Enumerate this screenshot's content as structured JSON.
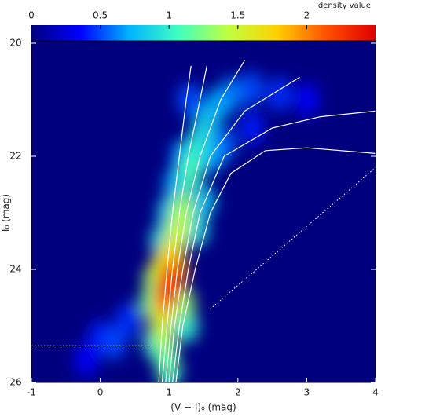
{
  "chart_data": {
    "type": "hess",
    "xlabel": "(V − I)₀ (mag)",
    "ylabel": "I₀ (mag)",
    "colorbar_label": "density value",
    "xlim": [
      -1,
      4
    ],
    "xticks": [
      -1,
      0,
      1,
      2,
      3,
      4
    ],
    "ylim": [
      20,
      26
    ],
    "yticks": [
      20,
      22,
      24,
      26
    ],
    "y_inverted": true,
    "clim": [
      0,
      2.5
    ],
    "cticks": [
      0,
      0.5,
      1,
      1.5,
      2
    ],
    "colormap": [
      "#00007f",
      "#0000ff",
      "#00b4ff",
      "#40ffc0",
      "#c0ff40",
      "#ffd000",
      "#ff5000",
      "#e00000"
    ],
    "density": {
      "x": [
        -0.2,
        0.0,
        3.0,
        2.2,
        0.4,
        2.6,
        0.2,
        2.2,
        1.3,
        1.8,
        1.9,
        1.2,
        1.7,
        1.1,
        1.6,
        1.55,
        1.0,
        1.5,
        0.8,
        1.45,
        0.9,
        1.4,
        1.35,
        1.0,
        1.25,
        1.3,
        0.95,
        1.2,
        0.75,
        0.9,
        1.2,
        1.15,
        0.8,
        1.1,
        0.9,
        0.9,
        1.0,
        1.1,
        0.95,
        1.05,
        1.0
      ],
      "y": [
        25.6,
        25.2,
        21.0,
        21.5,
        24.9,
        20.9,
        25.3,
        20.8,
        21.0,
        21.8,
        20.9,
        22.0,
        21.1,
        22.5,
        22.0,
        21.4,
        23.0,
        22.8,
        25.3,
        21.7,
        23.5,
        23.3,
        22.0,
        25.8,
        25.0,
        22.3,
        25.5,
        22.9,
        24.6,
        25.1,
        24.6,
        23.2,
        24.2,
        23.5,
        24.8,
        24.0,
        23.8,
        24.0,
        24.5,
        24.2,
        24.3
      ],
      "values": [
        0.35,
        0.4,
        0.35,
        0.4,
        0.45,
        0.45,
        0.5,
        0.5,
        0.5,
        0.55,
        0.6,
        0.6,
        0.7,
        0.7,
        0.7,
        0.8,
        0.8,
        0.8,
        0.9,
        0.9,
        0.9,
        0.9,
        1.0,
        1.1,
        1.0,
        1.1,
        1.2,
        1.3,
        1.2,
        1.4,
        1.3,
        1.4,
        1.3,
        1.5,
        1.6,
        1.6,
        1.7,
        1.9,
        2.0,
        2.2,
        2.3
      ]
    },
    "lines": [
      {
        "style": "solid",
        "x": [
          0.85,
          0.9,
          0.97,
          1.05,
          1.15,
          1.25,
          1.32
        ],
        "y": [
          26,
          25,
          24,
          23,
          22,
          21,
          20.4
        ]
      },
      {
        "style": "solid",
        "x": [
          0.9,
          0.97,
          1.05,
          1.15,
          1.28,
          1.45,
          1.55
        ],
        "y": [
          26,
          25,
          24,
          23,
          22,
          21,
          20.4
        ]
      },
      {
        "style": "solid",
        "x": [
          0.95,
          1.03,
          1.12,
          1.25,
          1.45,
          1.75,
          2.1
        ],
        "y": [
          26,
          25,
          24,
          23,
          22,
          21,
          20.3
        ]
      },
      {
        "style": "solid",
        "x": [
          1.0,
          1.08,
          1.2,
          1.35,
          1.6,
          2.1,
          2.9
        ],
        "y": [
          26,
          25,
          24,
          23,
          22,
          21.2,
          20.6
        ]
      },
      {
        "style": "solid",
        "x": [
          1.05,
          1.15,
          1.28,
          1.45,
          1.8,
          2.5,
          3.2,
          4.0
        ],
        "y": [
          26,
          25,
          24,
          23,
          22,
          21.5,
          21.3,
          21.2
        ]
      },
      {
        "style": "solid",
        "x": [
          1.1,
          1.2,
          1.38,
          1.6,
          1.9,
          2.4,
          3.0,
          4.0
        ],
        "y": [
          26,
          25,
          24,
          23,
          22.3,
          21.9,
          21.85,
          21.95
        ]
      },
      {
        "style": "dotted",
        "x": [
          1.6,
          4
        ],
        "y": [
          24.7,
          22.2
        ]
      },
      {
        "style": "dotted",
        "x": [
          -1,
          0.75
        ],
        "y": [
          25.35,
          25.35
        ]
      }
    ]
  }
}
